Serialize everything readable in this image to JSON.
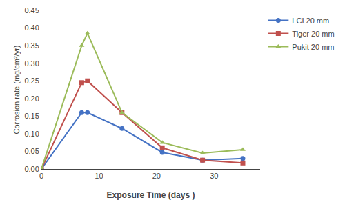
{
  "chart_data": {
    "type": "line",
    "x": [
      0,
      7,
      8,
      14,
      21,
      28,
      35
    ],
    "series": [
      {
        "name": "LCI 20 mm",
        "color": "#4472C4",
        "marker": "circle",
        "values": [
          0.0,
          0.16,
          0.16,
          0.115,
          0.047,
          0.025,
          0.03
        ]
      },
      {
        "name": "Tiger 20 mm",
        "color": "#C0504D",
        "marker": "square",
        "values": [
          0.0,
          0.245,
          0.25,
          0.16,
          0.06,
          0.025,
          0.017
        ]
      },
      {
        "name": "Pukit 20 mm",
        "color": "#9BBB59",
        "marker": "triangle-up",
        "values": [
          0.0,
          0.35,
          0.385,
          0.16,
          0.075,
          0.045,
          0.055
        ]
      }
    ],
    "xlabel": "Exposure Time (days )",
    "ylabel": "Corrosion rate (mg/cm²/yr)",
    "xlim": [
      0,
      38
    ],
    "ylim": [
      0,
      0.45
    ],
    "xticks": [
      0,
      10,
      20,
      30
    ],
    "yticks": [
      {
        "value": 0.0,
        "label": "0.00"
      },
      {
        "value": 0.05,
        "label": "0.05"
      },
      {
        "value": 0.1,
        "label": "0.10"
      },
      {
        "value": 0.15,
        "label": "0.15"
      },
      {
        "value": 0.2,
        "label": "0.20"
      },
      {
        "value": 0.25,
        "label": "0.25"
      },
      {
        "value": 0.3,
        "label": "0.30"
      },
      {
        "value": 0.35,
        "label": "0.35"
      },
      {
        "value": 0.4,
        "label": "0.40"
      },
      {
        "value": 0.45,
        "label": "0.45"
      }
    ],
    "grid": false,
    "legend": "right"
  }
}
